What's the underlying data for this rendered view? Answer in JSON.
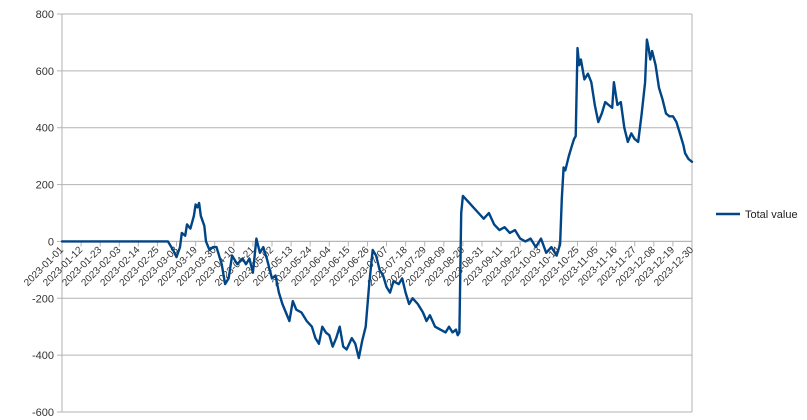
{
  "chart_data": {
    "type": "line",
    "title": "",
    "xlabel": "",
    "ylabel": "",
    "ylim": [
      -600,
      800
    ],
    "yticks": [
      -600,
      -400,
      -200,
      0,
      200,
      400,
      600,
      800
    ],
    "grid": "horizontal",
    "legend_position": "right",
    "line_color": "#004586",
    "axis_color": "#b3b3b3",
    "x_start": "2023-01-01",
    "x_end": "2023-12-30",
    "xtick_labels": [
      "2023-01-01",
      "2023-01-12",
      "2023-01-23",
      "2023-02-03",
      "2023-02-14",
      "2023-02-25",
      "2023-03-08",
      "2023-03-19",
      "2023-03-30",
      "2023-04-10",
      "2023-04-21",
      "2023-05-02",
      "2023-05-13",
      "2023-05-24",
      "2023-06-04",
      "2023-06-15",
      "2023-06-26",
      "2023-07-07",
      "2023-07-18",
      "2023-07-29",
      "2023-08-09",
      "2023-08-20",
      "2023-08-31",
      "2023-09-11",
      "2023-09-22",
      "2023-10-03",
      "2023-10-14",
      "2023-10-25",
      "2023-11-05",
      "2023-11-16",
      "2023-11-27",
      "2023-12-08",
      "2023-12-19",
      "2023-12-30"
    ],
    "series": [
      {
        "name": "Total value",
        "points": [
          [
            "2023-01-01",
            0
          ],
          [
            "2023-02-25",
            0
          ],
          [
            "2023-03-03",
            0
          ],
          [
            "2023-03-06",
            -30
          ],
          [
            "2023-03-08",
            -55
          ],
          [
            "2023-03-10",
            -20
          ],
          [
            "2023-03-11",
            30
          ],
          [
            "2023-03-13",
            20
          ],
          [
            "2023-03-14",
            60
          ],
          [
            "2023-03-16",
            45
          ],
          [
            "2023-03-18",
            90
          ],
          [
            "2023-03-19",
            130
          ],
          [
            "2023-03-20",
            120
          ],
          [
            "2023-03-21",
            135
          ],
          [
            "2023-03-22",
            90
          ],
          [
            "2023-03-24",
            55
          ],
          [
            "2023-03-25",
            0
          ],
          [
            "2023-03-27",
            -30
          ],
          [
            "2023-03-29",
            -20
          ],
          [
            "2023-03-31",
            -20
          ],
          [
            "2023-04-03",
            -80
          ],
          [
            "2023-04-05",
            -150
          ],
          [
            "2023-04-07",
            -130
          ],
          [
            "2023-04-09",
            -50
          ],
          [
            "2023-04-12",
            -80
          ],
          [
            "2023-04-15",
            -60
          ],
          [
            "2023-04-17",
            -80
          ],
          [
            "2023-04-19",
            -60
          ],
          [
            "2023-04-21",
            -110
          ],
          [
            "2023-04-23",
            10
          ],
          [
            "2023-04-25",
            -40
          ],
          [
            "2023-04-27",
            -20
          ],
          [
            "2023-04-29",
            -60
          ],
          [
            "2023-05-02",
            -130
          ],
          [
            "2023-05-04",
            -120
          ],
          [
            "2023-05-06",
            -180
          ],
          [
            "2023-05-08",
            -220
          ],
          [
            "2023-05-10",
            -250
          ],
          [
            "2023-05-12",
            -280
          ],
          [
            "2023-05-14",
            -210
          ],
          [
            "2023-05-16",
            -240
          ],
          [
            "2023-05-19",
            -250
          ],
          [
            "2023-05-22",
            -280
          ],
          [
            "2023-05-25",
            -300
          ],
          [
            "2023-05-27",
            -340
          ],
          [
            "2023-05-29",
            -360
          ],
          [
            "2023-05-31",
            -300
          ],
          [
            "2023-06-02",
            -320
          ],
          [
            "2023-06-04",
            -330
          ],
          [
            "2023-06-06",
            -370
          ],
          [
            "2023-06-08",
            -340
          ],
          [
            "2023-06-10",
            -300
          ],
          [
            "2023-06-12",
            -370
          ],
          [
            "2023-06-14",
            -380
          ],
          [
            "2023-06-17",
            -340
          ],
          [
            "2023-06-19",
            -360
          ],
          [
            "2023-06-21",
            -410
          ],
          [
            "2023-06-23",
            -350
          ],
          [
            "2023-06-25",
            -300
          ],
          [
            "2023-06-27",
            -150
          ],
          [
            "2023-06-29",
            -30
          ],
          [
            "2023-07-01",
            -50
          ],
          [
            "2023-07-03",
            -100
          ],
          [
            "2023-07-05",
            -120
          ],
          [
            "2023-07-07",
            -160
          ],
          [
            "2023-07-09",
            -180
          ],
          [
            "2023-07-11",
            -140
          ],
          [
            "2023-07-14",
            -150
          ],
          [
            "2023-07-16",
            -130
          ],
          [
            "2023-07-18",
            -180
          ],
          [
            "2023-07-20",
            -220
          ],
          [
            "2023-07-22",
            -200
          ],
          [
            "2023-07-25",
            -220
          ],
          [
            "2023-07-28",
            -250
          ],
          [
            "2023-07-30",
            -280
          ],
          [
            "2023-08-01",
            -260
          ],
          [
            "2023-08-04",
            -300
          ],
          [
            "2023-08-07",
            -310
          ],
          [
            "2023-08-10",
            -320
          ],
          [
            "2023-08-12",
            -300
          ],
          [
            "2023-08-14",
            -320
          ],
          [
            "2023-08-16",
            -310
          ],
          [
            "2023-08-17",
            -330
          ],
          [
            "2023-08-18",
            -320
          ],
          [
            "2023-08-19",
            100
          ],
          [
            "2023-08-20",
            160
          ],
          [
            "2023-08-23",
            140
          ],
          [
            "2023-08-26",
            120
          ],
          [
            "2023-08-29",
            100
          ],
          [
            "2023-09-01",
            80
          ],
          [
            "2023-09-04",
            100
          ],
          [
            "2023-09-07",
            60
          ],
          [
            "2023-09-10",
            40
          ],
          [
            "2023-09-13",
            50
          ],
          [
            "2023-09-16",
            30
          ],
          [
            "2023-09-19",
            40
          ],
          [
            "2023-09-22",
            10
          ],
          [
            "2023-09-25",
            0
          ],
          [
            "2023-09-28",
            10
          ],
          [
            "2023-10-01",
            -20
          ],
          [
            "2023-10-04",
            10
          ],
          [
            "2023-10-07",
            -40
          ],
          [
            "2023-10-10",
            -20
          ],
          [
            "2023-10-13",
            -50
          ],
          [
            "2023-10-15",
            -10
          ],
          [
            "2023-10-16",
            150
          ],
          [
            "2023-10-17",
            260
          ],
          [
            "2023-10-18",
            250
          ],
          [
            "2023-10-20",
            300
          ],
          [
            "2023-10-22",
            340
          ],
          [
            "2023-10-23",
            360
          ],
          [
            "2023-10-24",
            370
          ],
          [
            "2023-10-25",
            680
          ],
          [
            "2023-10-26",
            620
          ],
          [
            "2023-10-27",
            640
          ],
          [
            "2023-10-29",
            570
          ],
          [
            "2023-10-31",
            590
          ],
          [
            "2023-11-02",
            560
          ],
          [
            "2023-11-04",
            480
          ],
          [
            "2023-11-06",
            420
          ],
          [
            "2023-11-08",
            450
          ],
          [
            "2023-11-10",
            490
          ],
          [
            "2023-11-12",
            480
          ],
          [
            "2023-11-14",
            470
          ],
          [
            "2023-11-15",
            560
          ],
          [
            "2023-11-17",
            480
          ],
          [
            "2023-11-19",
            490
          ],
          [
            "2023-11-21",
            400
          ],
          [
            "2023-11-23",
            350
          ],
          [
            "2023-11-25",
            380
          ],
          [
            "2023-11-27",
            360
          ],
          [
            "2023-11-29",
            350
          ],
          [
            "2023-12-01",
            450
          ],
          [
            "2023-12-03",
            560
          ],
          [
            "2023-12-04",
            710
          ],
          [
            "2023-12-05",
            680
          ],
          [
            "2023-12-06",
            640
          ],
          [
            "2023-12-07",
            670
          ],
          [
            "2023-12-09",
            620
          ],
          [
            "2023-12-11",
            540
          ],
          [
            "2023-12-13",
            500
          ],
          [
            "2023-12-15",
            450
          ],
          [
            "2023-12-17",
            440
          ],
          [
            "2023-12-19",
            440
          ],
          [
            "2023-12-21",
            420
          ],
          [
            "2023-12-23",
            380
          ],
          [
            "2023-12-25",
            340
          ],
          [
            "2023-12-26",
            310
          ],
          [
            "2023-12-28",
            290
          ],
          [
            "2023-12-30",
            280
          ]
        ]
      }
    ]
  }
}
